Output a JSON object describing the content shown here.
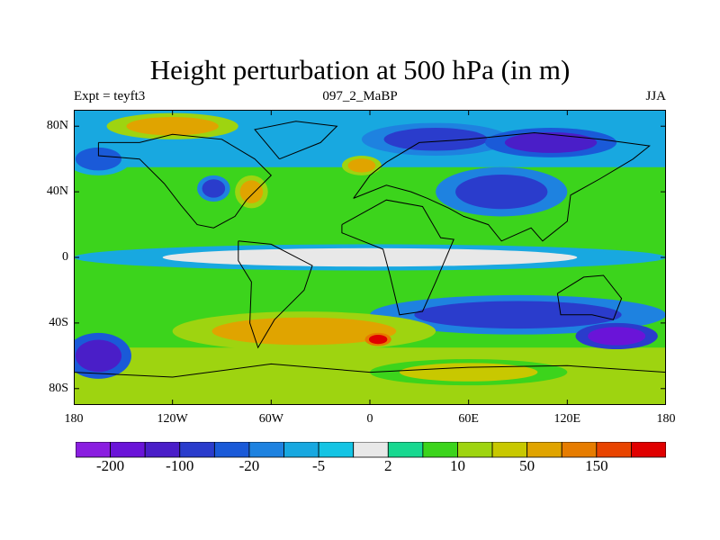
{
  "title": "Height perturbation at 500 hPa (in m)",
  "subtitle_left": "Expt = teyft3",
  "subtitle_center": "097_2_MaBP",
  "subtitle_right": "JJA",
  "lat_labels": [
    "80N",
    "40N",
    "0",
    "40S",
    "80S"
  ],
  "lon_labels": [
    "180",
    "120W",
    "60W",
    "0",
    "60E",
    "120E",
    "180"
  ],
  "colorbar": {
    "labels": [
      "-200",
      "-100",
      "-20",
      "-5",
      "2",
      "10",
      "50",
      "150"
    ],
    "colors": [
      "#8a1ee0",
      "#6a14d8",
      "#4a1ec8",
      "#2a3ccc",
      "#1a5ad8",
      "#1e82e0",
      "#18a8e0",
      "#14c4e4",
      "#e8e8e8",
      "#18d890",
      "#3cd41c",
      "#9ed410",
      "#c8c800",
      "#e0a400",
      "#e67c00",
      "#e84400",
      "#e00000"
    ]
  },
  "map_regions": [
    {
      "name": "arctic-band-orange",
      "level": 13,
      "cx": -120,
      "cy": 80,
      "rx": 40,
      "ry": 8
    },
    {
      "name": "arctic-blue",
      "level": 3,
      "cx": 40,
      "cy": 72,
      "rx": 45,
      "ry": 10
    },
    {
      "name": "siberia-blue",
      "level": 2,
      "cx": 110,
      "cy": 70,
      "rx": 40,
      "ry": 9
    },
    {
      "name": "north-pacific-blue",
      "level": 4,
      "cx": -165,
      "cy": 60,
      "rx": 20,
      "ry": 10
    },
    {
      "name": "north-atlantic-low",
      "level": 3,
      "cx": -95,
      "cy": 42,
      "rx": 10,
      "ry": 8
    },
    {
      "name": "north-america-orange",
      "level": 13,
      "cx": -72,
      "cy": 40,
      "rx": 10,
      "ry": 10
    },
    {
      "name": "europe-orange",
      "level": 13,
      "cx": -5,
      "cy": 56,
      "rx": 12,
      "ry": 6
    },
    {
      "name": "asia-blue",
      "level": 3,
      "cx": 80,
      "cy": 40,
      "rx": 40,
      "ry": 15
    },
    {
      "name": "equatorial-grey",
      "level": 8,
      "cx": 0,
      "cy": 0,
      "rx": 180,
      "ry": 8
    },
    {
      "name": "south-blue-band",
      "level": 3,
      "cx": 90,
      "cy": -35,
      "rx": 90,
      "ry": 12
    },
    {
      "name": "south-pacific-purple",
      "level": 1,
      "cx": 150,
      "cy": -48,
      "rx": 25,
      "ry": 8
    },
    {
      "name": "south-atlantic-orange",
      "level": 13,
      "cx": -40,
      "cy": -45,
      "rx": 80,
      "ry": 12
    },
    {
      "name": "south-red",
      "level": 16,
      "cx": 5,
      "cy": -50,
      "rx": 8,
      "ry": 4
    },
    {
      "name": "antarctic-blue",
      "level": 2,
      "cx": -165,
      "cy": -60,
      "rx": 20,
      "ry": 14
    },
    {
      "name": "antarctic-orange",
      "level": 12,
      "cx": 60,
      "cy": -70,
      "rx": 60,
      "ry": 8
    }
  ]
}
